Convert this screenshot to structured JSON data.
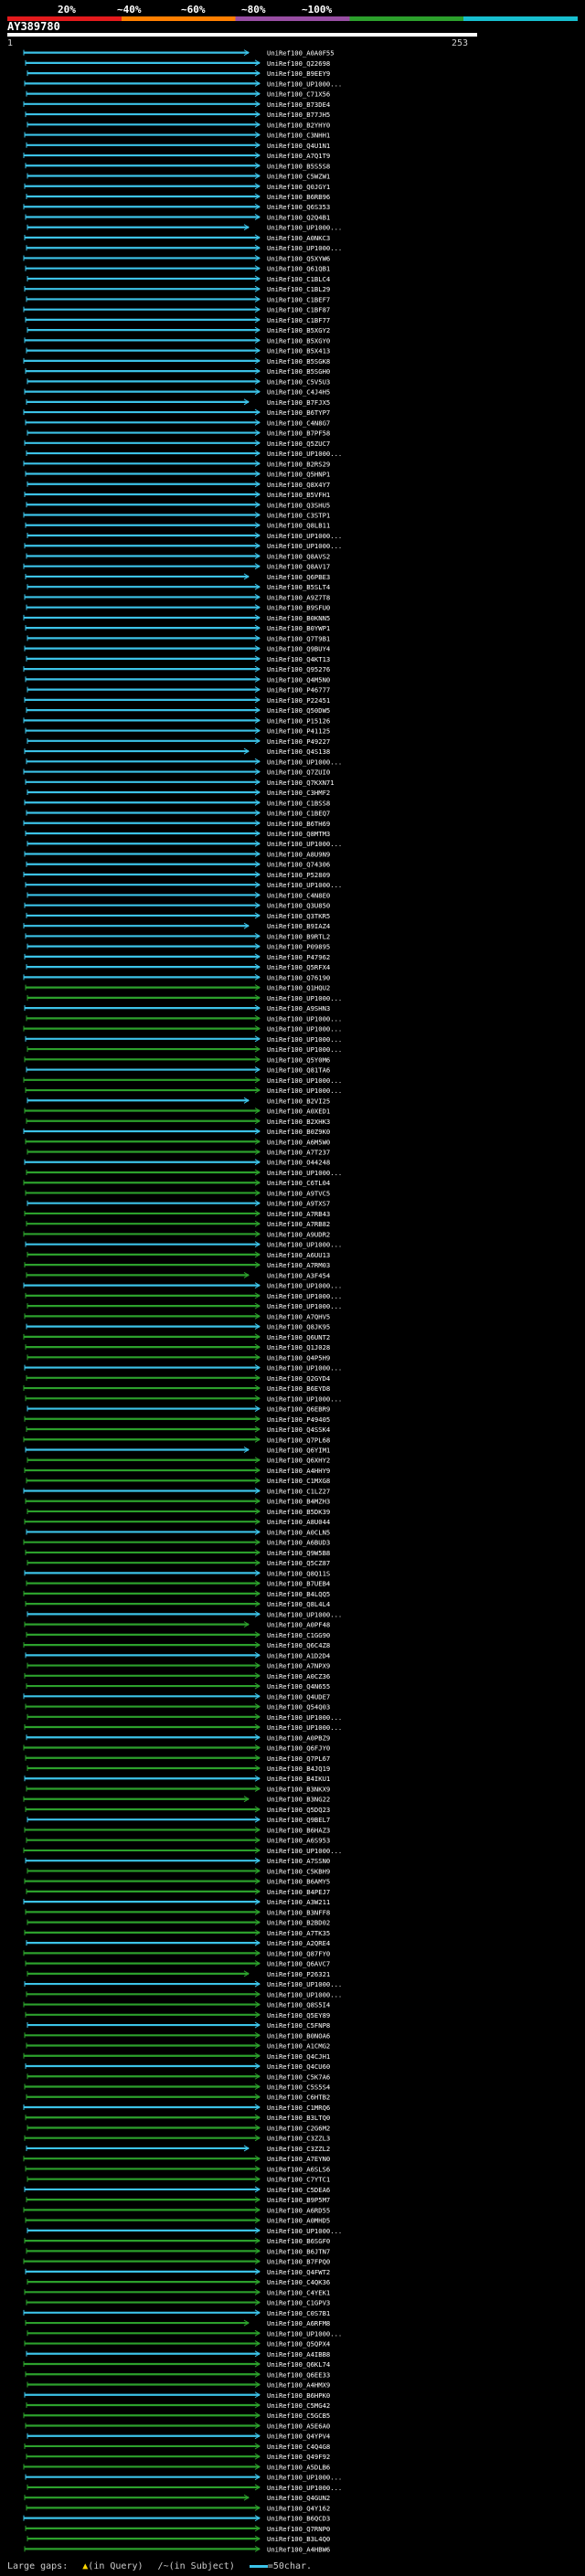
{
  "scale": {
    "ticks": [
      "20%",
      "~40%",
      "~60%",
      "~80%",
      "~100%"
    ],
    "colors": [
      "#e41a1c",
      "#ff7f00",
      "#984ea3",
      "#2ca02c",
      "#17becf"
    ]
  },
  "query": {
    "id": "AY389780",
    "start": "1",
    "end": "253"
  },
  "hit_ids": [
    "A0A0F55",
    "Q22698",
    "B9EEY9",
    "UP1000...",
    "C71X56",
    "B73DE4",
    "B77JH5",
    "B2YHY0",
    "C3NHH1",
    "Q4U1N1",
    "A7Q1T9",
    "B5S5S8",
    "C5WZW1",
    "Q0JGY1",
    "B6RB96",
    "Q6S353",
    "Q2Q4B1",
    "UP1000...",
    "A0NKC3",
    "UP1000...",
    "Q5XYW6",
    "Q61QB1",
    "C1BLC4",
    "C1BL29",
    "C1BEF7",
    "C1BF87",
    "C1BF77",
    "B5XGY2",
    "B5XGY0",
    "B5X413",
    "B5SGK8",
    "B5SGH0",
    "C5V5U3",
    "C4J4H5",
    "B7FJX5",
    "B6TYP7",
    "C4N8G7",
    "B7PF58",
    "Q5ZUC7",
    "UP1000...",
    "B2RS29",
    "Q5HNP1",
    "Q8X4Y7",
    "B5VFH1",
    "Q3SHU5",
    "C3STP1",
    "Q8LB11",
    "UP1000...",
    "UP1000...",
    "Q8AVS2",
    "Q8AV17",
    "Q6PBE3",
    "B5SLT4",
    "A9Z7T8",
    "B9SFU0",
    "B0KNN5",
    "B0YWP1",
    "Q7T9B1",
    "Q9BUY4",
    "Q4KT13",
    "Q95276",
    "Q4M5N0",
    "P46777",
    "P22451",
    "Q50DW5",
    "P15126",
    "P41125",
    "P49227",
    "Q4S138",
    "UP1000...",
    "Q7ZUI0",
    "Q7KXN71",
    "C3HMF2",
    "C1BSS8",
    "C1BEQ7",
    "B6TH69",
    "Q8MTM3",
    "UP1000...",
    "A8U9N9",
    "Q74306",
    "P52809",
    "UP1000...",
    "C4N8E0",
    "Q3U850",
    "Q3TKR5",
    "B9IAZ4",
    "B9RTL2",
    "P09895",
    "P47962",
    "Q5RFX4",
    "Q76190",
    "Q1HQU2",
    "UP1000...",
    "A9SHN3",
    "UP1000...",
    "UP1000...",
    "UP1000...",
    "UP1000...",
    "Q5Y0M6",
    "Q81TA6",
    "UP1000...",
    "UP1000...",
    "B2VI25",
    "A0XED1",
    "B2XHK3",
    "B0Z9K0",
    "A6M5W0",
    "A7T237",
    "O44248",
    "UP1000...",
    "C6TL04",
    "A9TVC5",
    "A9TXS7",
    "A7RB43",
    "A7RB82",
    "A9UDR2",
    "UP1000...",
    "A6UU13",
    "A7RM03",
    "A3F454",
    "UP1000...",
    "UP1000...",
    "UP1000...",
    "A7QHV5",
    "Q8JK95",
    "Q6UNT2",
    "Q1J028",
    "Q4P5H9",
    "UP1000...",
    "Q2GYD4",
    "B6EYD8",
    "UP1000...",
    "Q6EBR9",
    "P49405",
    "Q4SSK4",
    "Q7PL68",
    "Q6YIM1",
    "Q6XHY2",
    "A4HHY9",
    "C1MXG8",
    "C1LZ27",
    "B4MZH3",
    "B5DK39",
    "A8U044",
    "A0CLN5",
    "A6BUD3",
    "Q9W5B8",
    "Q5CZ87",
    "Q8Q11S",
    "B7UEB4",
    "B4LQQ5",
    "Q8L4L4",
    "UP1000...",
    "A0PF48",
    "C1GG90",
    "Q6C4Z8",
    "A1D2D4",
    "A7NPX9",
    "A0CZ36",
    "Q4N655",
    "Q4UDE7",
    "Q54Q03",
    "UP1000...",
    "UP1000...",
    "A0PBZ9",
    "Q6FJY0",
    "Q7PL67",
    "B4JQ19",
    "B4IKU1",
    "B3NKX9",
    "B3NG22",
    "Q5DQ23",
    "Q9BEL7",
    "B6HAZ3",
    "A6S953",
    "UP1000...",
    "A7SSN0",
    "C5KBH9",
    "B6AMY5",
    "B4PEJ7",
    "A3W211",
    "B3NFF8",
    "B2BD02",
    "A7TK35",
    "A2QRE4",
    "Q87FY0",
    "Q6AVC7",
    "P26321",
    "UP1000...",
    "UP1000...",
    "Q8S5I4",
    "Q5EY89",
    "C5FNP8",
    "B0NOA6",
    "A1CMG2",
    "Q4CJH1",
    "Q4CU60",
    "C5K7A6",
    "C5S5S4",
    "C6HTB2",
    "C1MRQ6",
    "B3LTQ0",
    "C2G6M2",
    "C3ZZL3",
    "C3ZZL2",
    "A7EYN0",
    "A6SLS6",
    "C7YTC1",
    "C5DEA6",
    "B9P5M7",
    "A6RD55",
    "A0MHD5",
    "UP1000...",
    "B6SGF0",
    "B6JTN7",
    "B7FPQ0",
    "Q4FWT2",
    "C4QK36",
    "C4YEK1",
    "C1GPV3",
    "C0S7B1",
    "A6RFM8",
    "UP1000...",
    "Q5QPX4",
    "A4IBB8",
    "Q6KL74",
    "Q6EE33",
    "A4HMX9",
    "B6HPK0",
    "C5MG42",
    "C5GCB5",
    "A5E6A0",
    "Q4YPV4",
    "C4Q4G8",
    "Q49F92",
    "A5DLB6",
    "UP1000...",
    "UP1000...",
    "Q4GUN2",
    "Q4Y162",
    "B6QCD3",
    "Q7RNP0",
    "B3L4Q0",
    "A4HBW6"
  ],
  "legend": {
    "large_gaps": "Large gaps:",
    "in_query": "(in Query)",
    "in_subject": "(in Subject)",
    "scale_label": "=50char."
  }
}
